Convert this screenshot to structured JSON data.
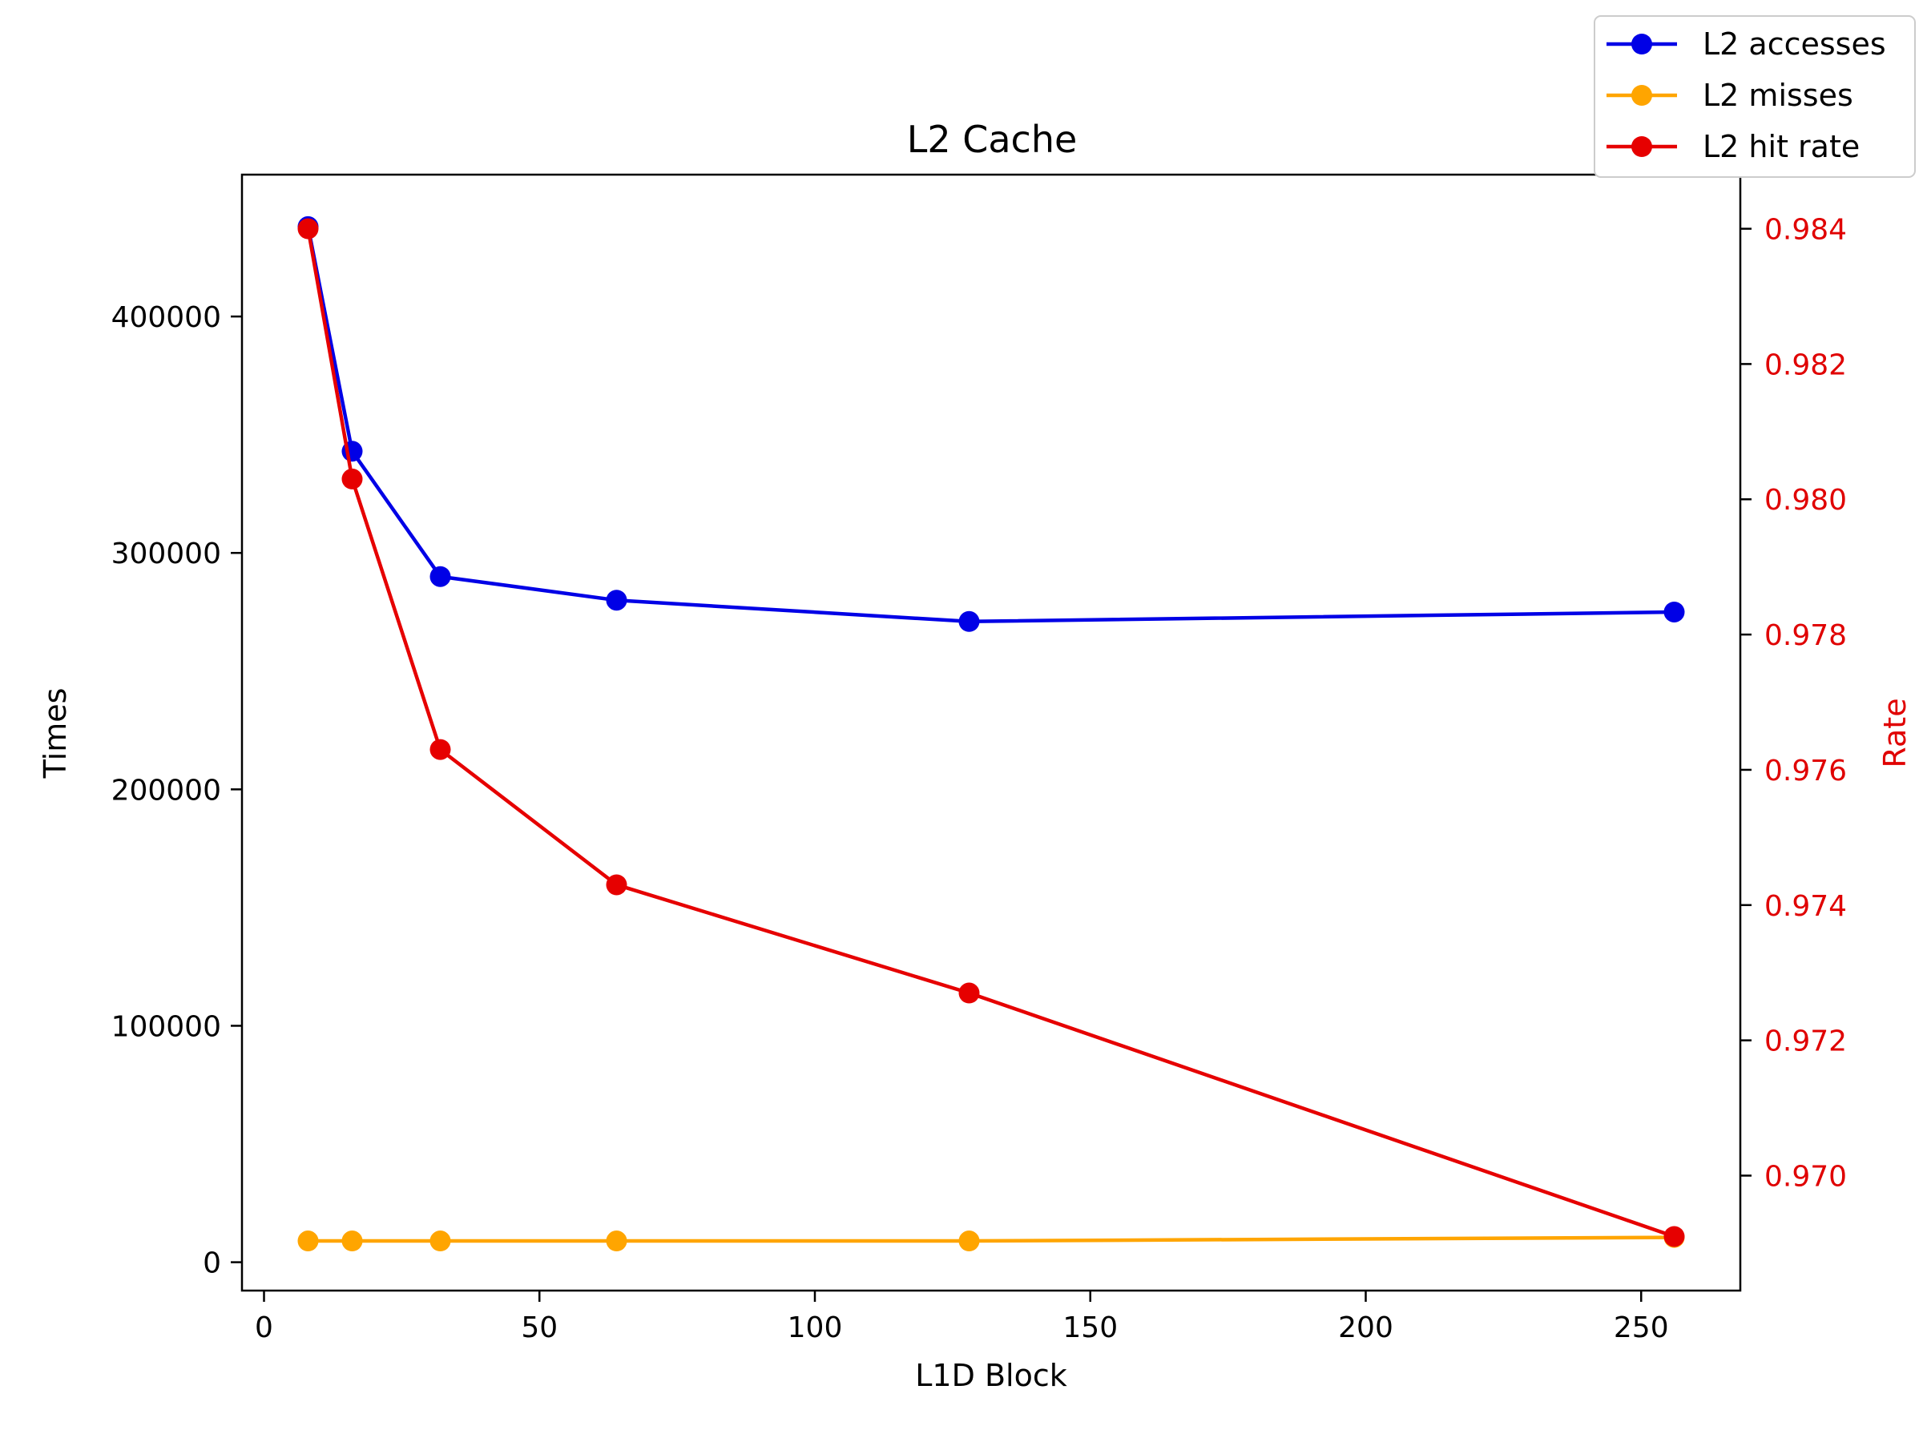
{
  "chart_data": {
    "type": "line",
    "title": "L2 Cache",
    "xlabel": "L1D Block",
    "ylabel": "Times",
    "y2label": "Rate",
    "x": [
      8,
      16,
      32,
      64,
      128,
      256
    ],
    "xlim": [
      -4,
      268
    ],
    "ylim": [
      -12000,
      460000
    ],
    "y2lim": [
      0.9683,
      0.9848
    ],
    "xticks": [
      0,
      50,
      100,
      150,
      200,
      250
    ],
    "yticks": [
      0,
      100000,
      200000,
      300000,
      400000
    ],
    "y2ticks": [
      0.97,
      0.972,
      0.974,
      0.976,
      0.978,
      0.98,
      0.982,
      0.984
    ],
    "y2tick_labels": [
      "0.970",
      "0.972",
      "0.974",
      "0.976",
      "0.978",
      "0.980",
      "0.982",
      "0.984"
    ],
    "grid": false,
    "legend_position": "top-right (outside plot)",
    "series": [
      {
        "name": "L2 accesses",
        "axis": "left",
        "color": "#0000e6",
        "values": [
          438000,
          343000,
          290000,
          280000,
          271000,
          275000
        ]
      },
      {
        "name": "L2 misses",
        "axis": "left",
        "color": "#ffa500",
        "values": [
          9000,
          9000,
          9000,
          9000,
          9000,
          10500
        ]
      },
      {
        "name": "L2 hit rate",
        "axis": "right",
        "color": "#e60000",
        "values": [
          0.984,
          0.9803,
          0.9763,
          0.9743,
          0.9727,
          0.9691
        ]
      }
    ]
  }
}
